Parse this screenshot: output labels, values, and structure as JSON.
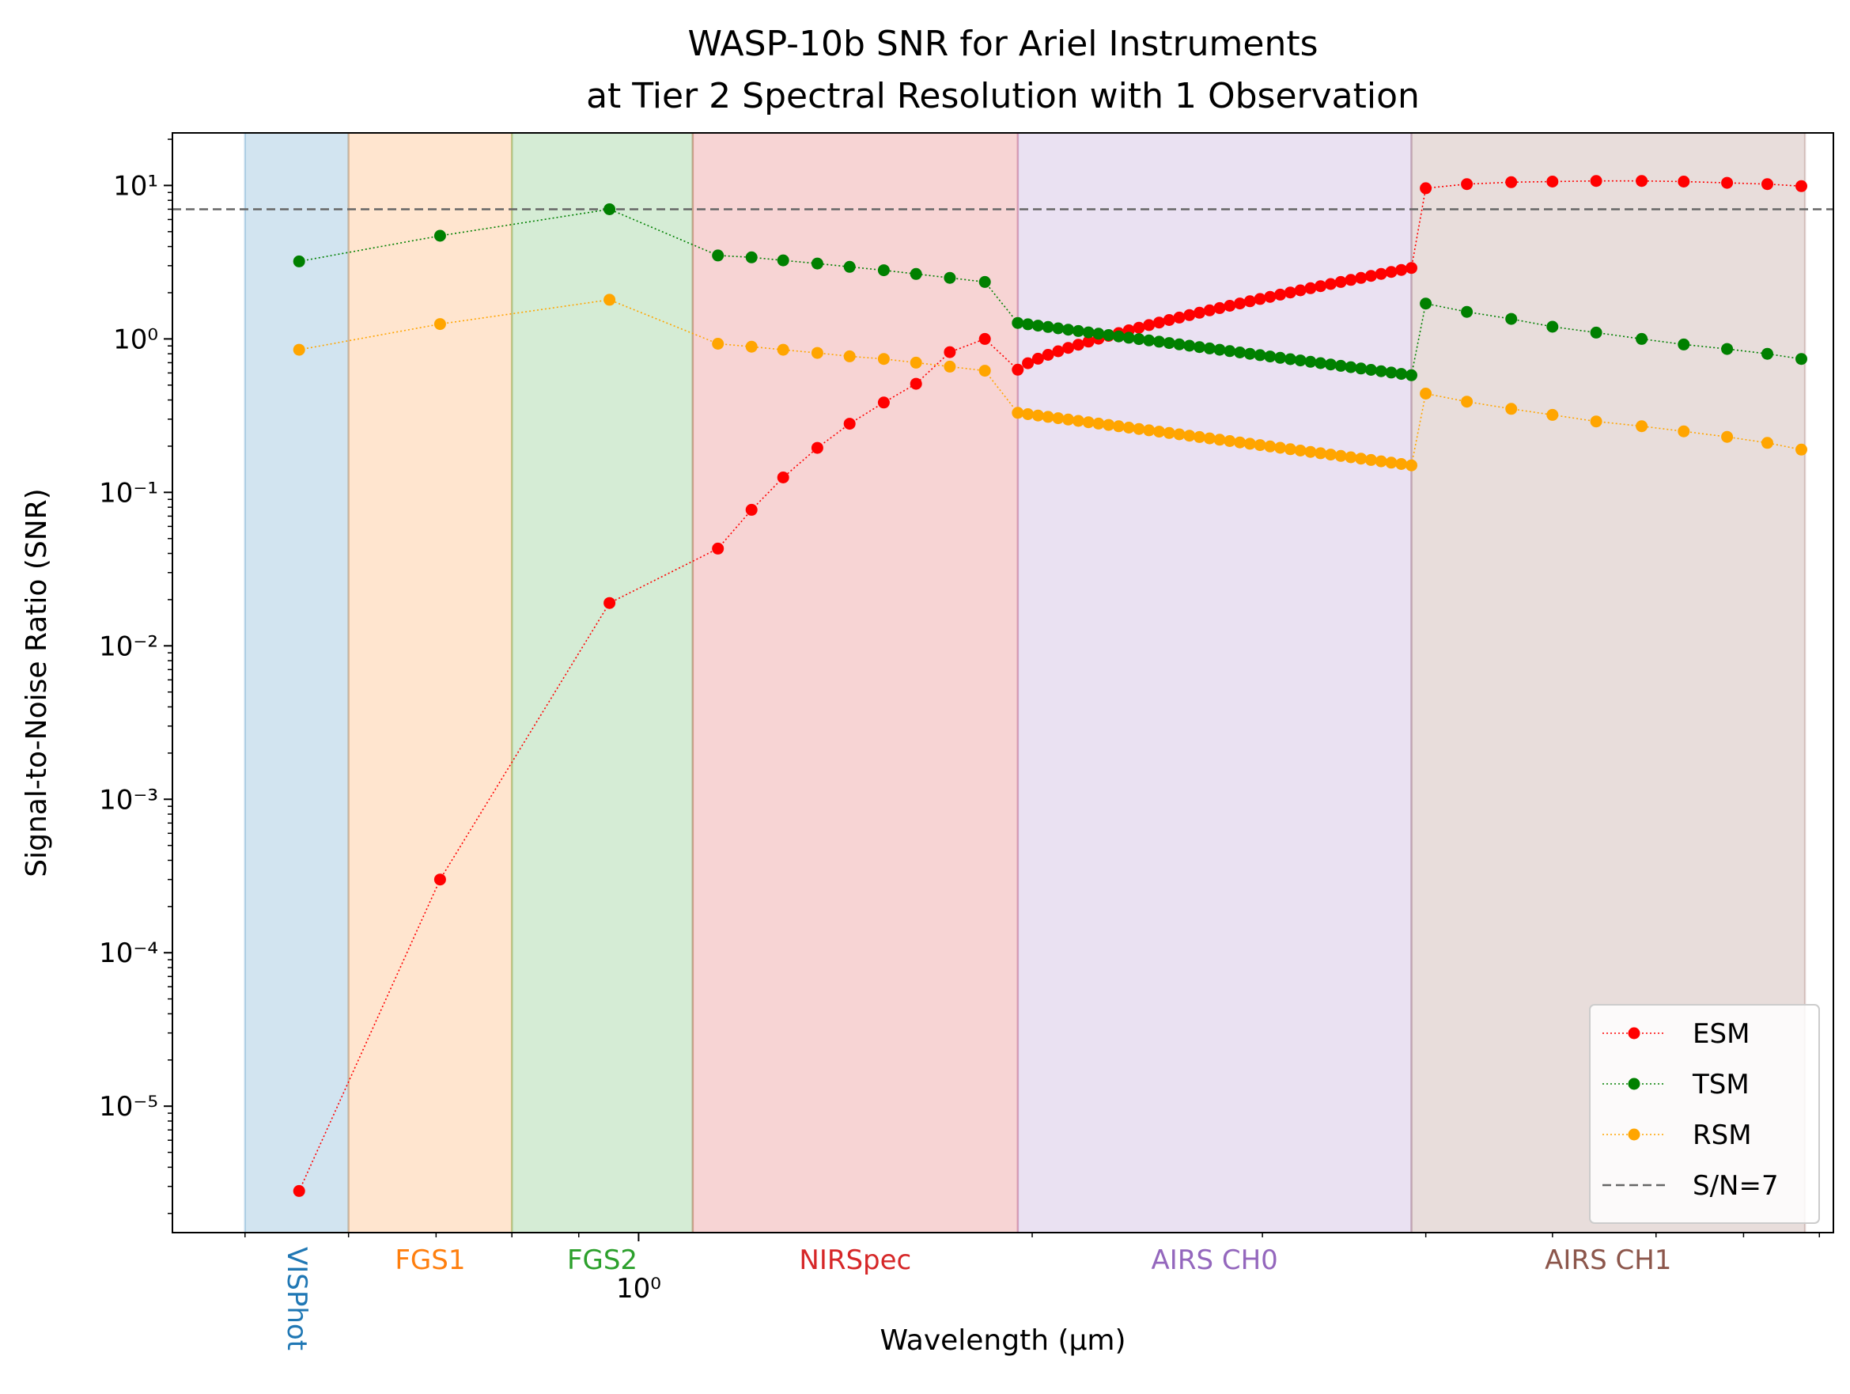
{
  "chart_data": {
    "type": "line",
    "title": "WASP-10b SNR for Ariel Instruments",
    "subtitle": "at Tier 2 Spectral Resolution with 1 Observation",
    "xlabel": "Wavelength (μm)",
    "ylabel": "Signal-to-Noise Ratio (SNR)",
    "xscale": "log",
    "yscale": "log",
    "xlim": [
      0.44,
      8.2
    ],
    "ylim": [
      1.5e-06,
      22
    ],
    "x_ticks": [
      {
        "value": 1.0,
        "label": "10⁰"
      }
    ],
    "y_ticks": [
      {
        "value": 1e-05,
        "label": "10⁻⁵"
      },
      {
        "value": 0.0001,
        "label": "10⁻⁴"
      },
      {
        "value": 0.001,
        "label": "10⁻³"
      },
      {
        "value": 0.01,
        "label": "10⁻²"
      },
      {
        "value": 0.1,
        "label": "10⁻¹"
      },
      {
        "value": 1,
        "label": "10⁰"
      },
      {
        "value": 10,
        "label": "10¹"
      }
    ],
    "grid": false,
    "legend_position": "bottom-right",
    "threshold": {
      "label": "S/N=7",
      "value": 7,
      "color": "#666666"
    },
    "bands": [
      {
        "name": "VISPhot",
        "x0": 0.5,
        "x1": 0.6,
        "color": "#1f77b4",
        "rotated": true
      },
      {
        "name": "FGS1",
        "x0": 0.6,
        "x1": 0.8,
        "color": "#ff7f0e",
        "rotated": false
      },
      {
        "name": "FGS2",
        "x0": 0.8,
        "x1": 1.1,
        "color": "#2ca02c",
        "rotated": false
      },
      {
        "name": "NIRSpec",
        "x0": 1.1,
        "x1": 1.95,
        "color": "#d62728",
        "rotated": false
      },
      {
        "name": "AIRS CH0",
        "x0": 1.95,
        "x1": 3.9,
        "color": "#9467bd",
        "rotated": false
      },
      {
        "name": "AIRS CH1",
        "x0": 3.9,
        "x1": 7.8,
        "color": "#8c564b",
        "rotated": false
      }
    ],
    "series": [
      {
        "name": "ESM",
        "color": "#ff0000",
        "segments": [
          {
            "x": [
              0.55
            ],
            "y": [
              2.8e-06
            ]
          },
          {
            "x": [
              0.705
            ],
            "y": [
              0.0003
            ]
          },
          {
            "x": [
              0.95
            ],
            "y": [
              0.019
            ]
          },
          {
            "x": [
              1.15,
              1.22,
              1.29,
              1.37,
              1.45,
              1.54,
              1.63,
              1.73,
              1.84
            ],
            "y": [
              0.043,
              0.077,
              0.125,
              0.195,
              0.28,
              0.385,
              0.51,
              0.82,
              1.0
            ]
          },
          {
            "range": [
              1.95,
              3.9
            ],
            "n": 40,
            "y_start": 0.63,
            "y_end": 2.9,
            "curve": 0.75
          },
          {
            "x": [
              4.0,
              4.3,
              4.65,
              5.0,
              5.4,
              5.85,
              6.3,
              6.8,
              7.3,
              7.75
            ],
            "y": [
              9.6,
              10.2,
              10.5,
              10.6,
              10.7,
              10.7,
              10.6,
              10.4,
              10.2,
              9.9
            ]
          }
        ]
      },
      {
        "name": "TSM",
        "color": "#008000",
        "segments": [
          {
            "x": [
              0.55
            ],
            "y": [
              3.2
            ]
          },
          {
            "x": [
              0.705
            ],
            "y": [
              4.7
            ]
          },
          {
            "x": [
              0.95
            ],
            "y": [
              7.0
            ]
          },
          {
            "x": [
              1.15,
              1.22,
              1.29,
              1.37,
              1.45,
              1.54,
              1.63,
              1.73,
              1.84
            ],
            "y": [
              3.5,
              3.4,
              3.25,
              3.1,
              2.95,
              2.8,
              2.65,
              2.5,
              2.35
            ]
          },
          {
            "range": [
              1.95,
              3.9
            ],
            "n": 40,
            "y_start": 1.27,
            "y_end": 0.58,
            "curve": 1
          },
          {
            "x": [
              4.0,
              4.3,
              4.65,
              5.0,
              5.4,
              5.85,
              6.3,
              6.8,
              7.3,
              7.75
            ],
            "y": [
              1.7,
              1.5,
              1.35,
              1.2,
              1.1,
              1.0,
              0.92,
              0.86,
              0.8,
              0.74
            ]
          }
        ]
      },
      {
        "name": "RSM",
        "color": "#ffa500",
        "segments": [
          {
            "x": [
              0.55
            ],
            "y": [
              0.85
            ]
          },
          {
            "x": [
              0.705
            ],
            "y": [
              1.25
            ]
          },
          {
            "x": [
              0.95
            ],
            "y": [
              1.8
            ]
          },
          {
            "x": [
              1.15,
              1.22,
              1.29,
              1.37,
              1.45,
              1.54,
              1.63,
              1.73,
              1.84
            ],
            "y": [
              0.93,
              0.89,
              0.85,
              0.81,
              0.77,
              0.74,
              0.7,
              0.66,
              0.62
            ]
          },
          {
            "range": [
              1.95,
              3.9
            ],
            "n": 40,
            "y_start": 0.33,
            "y_end": 0.15,
            "curve": 1
          },
          {
            "x": [
              4.0,
              4.3,
              4.65,
              5.0,
              5.4,
              5.85,
              6.3,
              6.8,
              7.3,
              7.75
            ],
            "y": [
              0.44,
              0.39,
              0.35,
              0.32,
              0.29,
              0.27,
              0.25,
              0.23,
              0.21,
              0.19
            ]
          }
        ]
      }
    ]
  }
}
